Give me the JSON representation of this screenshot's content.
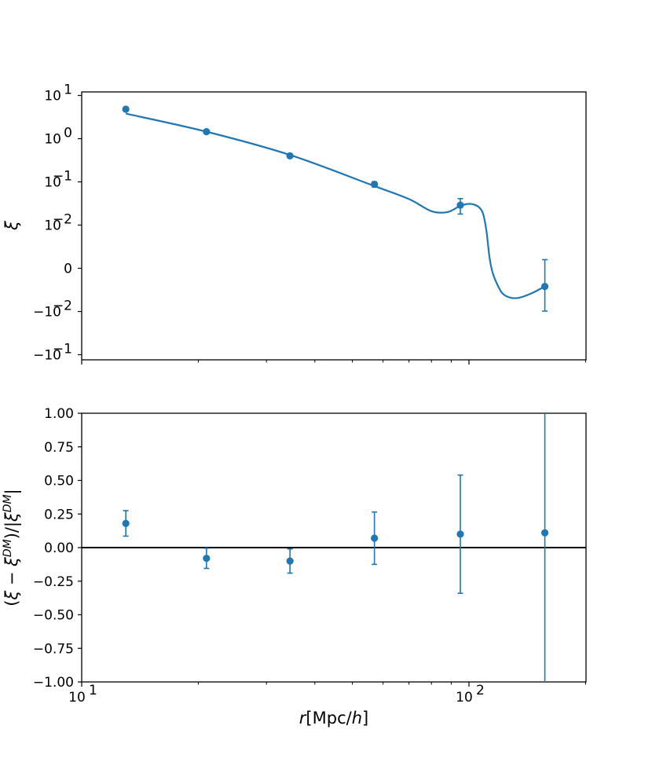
{
  "colors": {
    "series": "#1f77b4",
    "axis": "#000000",
    "background": "#ffffff"
  },
  "chart_data": [
    {
      "type": "scatter",
      "xscale": "log",
      "yscale": "symlog",
      "symlog_linthresh": 0.01,
      "xlim": [
        10,
        200
      ],
      "ylim": [
        -0.1,
        10
      ],
      "xlabel": "",
      "ylabel": "ξ",
      "yticks": [
        {
          "value": 10,
          "base": "10",
          "exp": "1"
        },
        {
          "value": 1,
          "base": "10",
          "exp": "0"
        },
        {
          "value": 0.1,
          "base": "10",
          "exp": "−1"
        },
        {
          "value": 0.01,
          "base": "10",
          "exp": "−2"
        },
        {
          "value": 0,
          "base": "0",
          "exp": ""
        },
        {
          "value": -0.01,
          "base": "−10",
          "exp": "−2"
        },
        {
          "value": -0.1,
          "base": "−10",
          "exp": "−1"
        }
      ],
      "series": [
        {
          "kind": "errorbar",
          "x": [
            13.0,
            21.0,
            34.5,
            57.0,
            95.0,
            157.0
          ],
          "y": [
            4.8,
            1.45,
            0.4,
            0.088,
            0.029,
            -0.0042
          ],
          "yerr_low": [
            0.25,
            0.07,
            0.03,
            0.012,
            0.011,
            0.0057
          ],
          "yerr_high": [
            0.25,
            0.07,
            0.03,
            0.012,
            0.012,
            0.0062
          ]
        },
        {
          "kind": "line",
          "x": [
            13.0,
            21.0,
            34.5,
            57.0,
            70.0,
            80.0,
            88.0,
            95.0,
            100.0,
            104.0,
            107.0,
            109.0,
            111.0,
            113.0,
            115.0,
            118.0,
            122.0,
            128.0,
            135.0,
            145.0,
            157.0
          ],
          "y": [
            3.8,
            1.45,
            0.42,
            0.08,
            0.04,
            0.021,
            0.02,
            0.028,
            0.031,
            0.029,
            0.024,
            0.017,
            0.0085,
            0.0025,
            -0.0009,
            -0.0035,
            -0.0058,
            -0.0068,
            -0.0068,
            -0.0058,
            -0.0042
          ]
        }
      ]
    },
    {
      "type": "scatter",
      "xscale": "log",
      "xlim": [
        10,
        200
      ],
      "ylim": [
        -1.0,
        1.0
      ],
      "xlabel": "r[Mpc/h]",
      "ylabel": "(ξ − ξDM)/|ξDM|",
      "yticks": [
        "1.00",
        "0.75",
        "0.50",
        "0.25",
        "0.00",
        "−0.25",
        "−0.50",
        "−0.75",
        "−1.00"
      ],
      "xticks": [
        {
          "value": 10,
          "base": "10",
          "exp": "1"
        },
        {
          "value": 100,
          "base": "10",
          "exp": "2"
        }
      ],
      "hline": 0,
      "series": [
        {
          "kind": "errorbar",
          "x": [
            13.0,
            21.0,
            34.5,
            57.0,
            95.0,
            157.0
          ],
          "y": [
            0.18,
            -0.08,
            -0.1,
            0.07,
            0.1,
            0.11
          ],
          "yerr": [
            0.095,
            0.075,
            0.09,
            0.195,
            0.44,
            1.2
          ]
        }
      ]
    }
  ]
}
